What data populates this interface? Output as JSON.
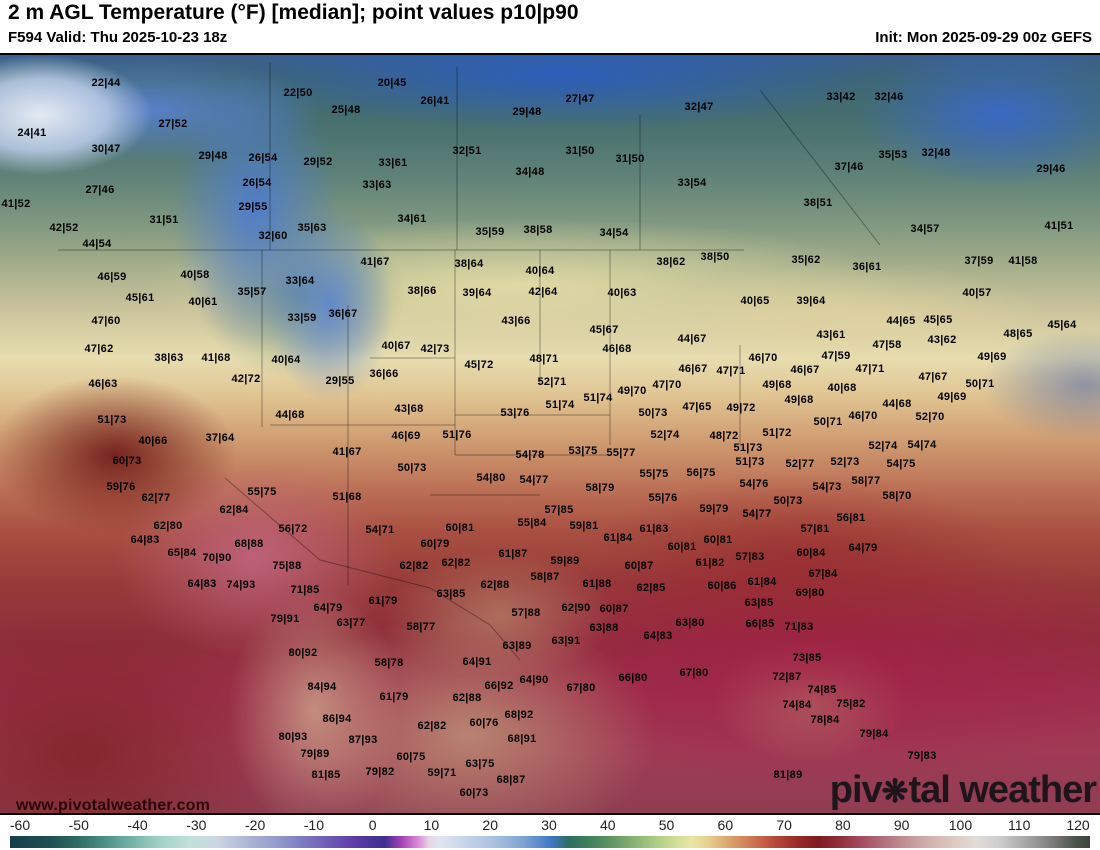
{
  "header": {
    "title": "2 m AGL Temperature (°F) [median]; point values p10|p90",
    "valid": "F594 Valid: Thu 2025-10-23 18z",
    "init": "Init: Mon 2025-09-29 00z GEFS"
  },
  "watermark": {
    "url": "www.pivotalweather.com",
    "logo_pre": "piv",
    "logo_gear": "❋",
    "logo_post": "tal weather"
  },
  "colorbar": {
    "unit": "°F",
    "ticks": [
      -60,
      -50,
      -40,
      -30,
      -20,
      -10,
      0,
      10,
      20,
      30,
      40,
      50,
      60,
      70,
      80,
      90,
      100,
      110,
      120
    ],
    "stops": [
      [
        0.0,
        "#16404a"
      ],
      [
        3.7,
        "#1d5054"
      ],
      [
        6.3,
        "#2d6d64"
      ],
      [
        8.9,
        "#4c9287"
      ],
      [
        11.4,
        "#76b5a9"
      ],
      [
        14.0,
        "#a3d2c6"
      ],
      [
        16.6,
        "#c2e0d8"
      ],
      [
        19.2,
        "#cbd5e3"
      ],
      [
        21.8,
        "#adb9d7"
      ],
      [
        24.4,
        "#969fce"
      ],
      [
        26.9,
        "#7e7ec3"
      ],
      [
        29.5,
        "#6e5bb7"
      ],
      [
        32.1,
        "#5c39a5"
      ],
      [
        34.7,
        "#3c2f8f"
      ],
      [
        36.2,
        "#a53fb5"
      ],
      [
        37.8,
        "#d98bd6"
      ],
      [
        38.8,
        "#e8d5e6"
      ],
      [
        39.8,
        "#dfe6f0"
      ],
      [
        42.4,
        "#c3d3e8"
      ],
      [
        45.0,
        "#a6c0e0"
      ],
      [
        47.6,
        "#7ba3d4"
      ],
      [
        50.2,
        "#3e76c4"
      ],
      [
        51.7,
        "#2c6e62"
      ],
      [
        53.3,
        "#3a7d5e"
      ],
      [
        55.3,
        "#58925f"
      ],
      [
        57.4,
        "#7fae6e"
      ],
      [
        59.5,
        "#a8c87f"
      ],
      [
        61.5,
        "#cfdd94"
      ],
      [
        63.1,
        "#eae6a4"
      ],
      [
        64.6,
        "#e8d08e"
      ],
      [
        66.7,
        "#dca06a"
      ],
      [
        68.8,
        "#cc7450"
      ],
      [
        70.8,
        "#b84a3a"
      ],
      [
        72.9,
        "#992a28"
      ],
      [
        74.9,
        "#7e1a1e"
      ],
      [
        77.0,
        "#93303e"
      ],
      [
        79.1,
        "#a65062"
      ],
      [
        81.1,
        "#b57280"
      ],
      [
        83.2,
        "#c49597"
      ],
      [
        85.3,
        "#d3b3ae"
      ],
      [
        87.3,
        "#ddc8c2"
      ],
      [
        89.4,
        "#e3dcd8"
      ],
      [
        91.5,
        "#cfcfcf"
      ],
      [
        94.0,
        "#a8a8a8"
      ],
      [
        96.6,
        "#7a7a7a"
      ],
      [
        98.7,
        "#4a524a"
      ],
      [
        100,
        "#3c443c"
      ]
    ]
  },
  "map": {
    "points": [
      [
        106,
        83,
        "22|44"
      ],
      [
        298,
        93,
        "22|50"
      ],
      [
        346,
        110,
        "25|48"
      ],
      [
        32,
        133,
        "24|41"
      ],
      [
        173,
        124,
        "27|52"
      ],
      [
        106,
        149,
        "30|47"
      ],
      [
        213,
        156,
        "29|48"
      ],
      [
        263,
        158,
        "26|54"
      ],
      [
        318,
        162,
        "29|52"
      ],
      [
        257,
        183,
        "26|54"
      ],
      [
        100,
        190,
        "27|46"
      ],
      [
        16,
        204,
        "41|52"
      ],
      [
        253,
        207,
        "29|55"
      ],
      [
        164,
        220,
        "31|51"
      ],
      [
        64,
        228,
        "42|52"
      ],
      [
        312,
        228,
        "35|63"
      ],
      [
        273,
        236,
        "32|60"
      ],
      [
        97,
        244,
        "44|54"
      ],
      [
        392,
        83,
        "20|45"
      ],
      [
        435,
        101,
        "26|41"
      ],
      [
        580,
        99,
        "27|47"
      ],
      [
        527,
        112,
        "29|48"
      ],
      [
        699,
        107,
        "32|47"
      ],
      [
        467,
        151,
        "32|51"
      ],
      [
        580,
        151,
        "31|50"
      ],
      [
        630,
        159,
        "31|50"
      ],
      [
        393,
        163,
        "33|61"
      ],
      [
        530,
        172,
        "34|48"
      ],
      [
        692,
        183,
        "33|54"
      ],
      [
        377,
        185,
        "33|63"
      ],
      [
        412,
        219,
        "34|61"
      ],
      [
        490,
        232,
        "35|59"
      ],
      [
        538,
        230,
        "38|58"
      ],
      [
        614,
        233,
        "34|54"
      ],
      [
        841,
        97,
        "33|42"
      ],
      [
        889,
        97,
        "32|46"
      ],
      [
        893,
        155,
        "35|53"
      ],
      [
        936,
        153,
        "32|48"
      ],
      [
        849,
        167,
        "37|46"
      ],
      [
        1051,
        169,
        "29|46"
      ],
      [
        818,
        203,
        "38|51"
      ],
      [
        925,
        229,
        "34|57"
      ],
      [
        1059,
        226,
        "41|51"
      ],
      [
        112,
        277,
        "46|59"
      ],
      [
        195,
        275,
        "40|58"
      ],
      [
        300,
        281,
        "33|64"
      ],
      [
        140,
        298,
        "45|61"
      ],
      [
        203,
        302,
        "40|61"
      ],
      [
        252,
        292,
        "35|57"
      ],
      [
        302,
        318,
        "33|59"
      ],
      [
        343,
        314,
        "36|67"
      ],
      [
        106,
        321,
        "47|60"
      ],
      [
        99,
        349,
        "47|62"
      ],
      [
        169,
        358,
        "38|63"
      ],
      [
        216,
        358,
        "41|68"
      ],
      [
        286,
        360,
        "40|64"
      ],
      [
        246,
        379,
        "42|72"
      ],
      [
        340,
        381,
        "29|55"
      ],
      [
        103,
        384,
        "46|63"
      ],
      [
        112,
        420,
        "51|73"
      ],
      [
        290,
        415,
        "44|68"
      ],
      [
        153,
        441,
        "40|66"
      ],
      [
        220,
        438,
        "37|64"
      ],
      [
        347,
        452,
        "41|67"
      ],
      [
        375,
        262,
        "41|67"
      ],
      [
        469,
        264,
        "38|64"
      ],
      [
        540,
        271,
        "40|64"
      ],
      [
        671,
        262,
        "38|62"
      ],
      [
        715,
        257,
        "38|50"
      ],
      [
        422,
        291,
        "38|66"
      ],
      [
        477,
        293,
        "39|64"
      ],
      [
        543,
        292,
        "42|64"
      ],
      [
        622,
        293,
        "40|63"
      ],
      [
        516,
        321,
        "43|66"
      ],
      [
        604,
        330,
        "45|67"
      ],
      [
        692,
        339,
        "44|67"
      ],
      [
        396,
        346,
        "40|67"
      ],
      [
        435,
        349,
        "42|73"
      ],
      [
        617,
        349,
        "46|68"
      ],
      [
        479,
        365,
        "45|72"
      ],
      [
        384,
        374,
        "36|66"
      ],
      [
        544,
        359,
        "48|71"
      ],
      [
        693,
        369,
        "46|67"
      ],
      [
        552,
        382,
        "52|71"
      ],
      [
        667,
        385,
        "47|70"
      ],
      [
        632,
        391,
        "49|70"
      ],
      [
        697,
        394,
        "47|65"
      ],
      [
        598,
        398,
        "51|74"
      ],
      [
        409,
        409,
        "43|68"
      ],
      [
        560,
        405,
        "51|74"
      ],
      [
        515,
        413,
        "53|76"
      ],
      [
        653,
        413,
        "50|73"
      ],
      [
        406,
        436,
        "46|69"
      ],
      [
        457,
        435,
        "51|76"
      ],
      [
        665,
        435,
        "52|74"
      ],
      [
        806,
        260,
        "35|62"
      ],
      [
        867,
        267,
        "36|61"
      ],
      [
        979,
        261,
        "37|59"
      ],
      [
        1023,
        261,
        "41|58"
      ],
      [
        977,
        293,
        "40|57"
      ],
      [
        755,
        301,
        "40|65"
      ],
      [
        811,
        301,
        "39|64"
      ],
      [
        901,
        321,
        "44|65"
      ],
      [
        938,
        320,
        "45|65"
      ],
      [
        1062,
        325,
        "45|64"
      ],
      [
        831,
        335,
        "43|61"
      ],
      [
        942,
        340,
        "43|62"
      ],
      [
        1018,
        334,
        "48|65"
      ],
      [
        887,
        345,
        "47|58"
      ],
      [
        836,
        356,
        "47|59"
      ],
      [
        992,
        357,
        "49|69"
      ],
      [
        763,
        358,
        "46|70"
      ],
      [
        805,
        370,
        "46|67"
      ],
      [
        870,
        369,
        "47|71"
      ],
      [
        731,
        371,
        "47|71"
      ],
      [
        777,
        385,
        "49|68"
      ],
      [
        842,
        388,
        "40|68"
      ],
      [
        933,
        377,
        "47|67"
      ],
      [
        980,
        384,
        "50|71"
      ],
      [
        799,
        400,
        "49|68"
      ],
      [
        952,
        397,
        "49|69"
      ],
      [
        741,
        408,
        "49|72"
      ],
      [
        897,
        404,
        "44|68"
      ],
      [
        863,
        416,
        "46|70"
      ],
      [
        930,
        417,
        "52|70"
      ],
      [
        828,
        422,
        "50|71"
      ],
      [
        777,
        433,
        "51|72"
      ],
      [
        724,
        436,
        "48|72"
      ],
      [
        748,
        448,
        "51|73"
      ],
      [
        883,
        446,
        "52|74"
      ],
      [
        922,
        445,
        "54|74"
      ],
      [
        127,
        461,
        "60|73"
      ],
      [
        121,
        487,
        "59|76"
      ],
      [
        156,
        498,
        "62|77"
      ],
      [
        262,
        492,
        "55|75"
      ],
      [
        347,
        497,
        "51|68"
      ],
      [
        234,
        510,
        "62|84"
      ],
      [
        168,
        526,
        "62|80"
      ],
      [
        293,
        529,
        "56|72"
      ],
      [
        145,
        540,
        "64|83"
      ],
      [
        249,
        544,
        "68|88"
      ],
      [
        182,
        553,
        "65|84"
      ],
      [
        217,
        558,
        "70|90"
      ],
      [
        287,
        566,
        "75|88"
      ],
      [
        202,
        584,
        "64|83"
      ],
      [
        241,
        585,
        "74|93"
      ],
      [
        305,
        590,
        "71|85"
      ],
      [
        328,
        608,
        "64|79"
      ],
      [
        285,
        619,
        "79|91"
      ],
      [
        351,
        623,
        "63|77"
      ],
      [
        412,
        468,
        "50|73"
      ],
      [
        530,
        455,
        "54|78"
      ],
      [
        583,
        451,
        "53|75"
      ],
      [
        621,
        453,
        "55|77"
      ],
      [
        654,
        461,
        "55|75"
      ],
      [
        491,
        478,
        "54|80"
      ],
      [
        534,
        480,
        "54|77"
      ],
      [
        701,
        473,
        "56|75"
      ],
      [
        600,
        488,
        "58|79"
      ],
      [
        663,
        485,
        "55|76"
      ],
      [
        559,
        510,
        "57|85"
      ],
      [
        714,
        509,
        "59|79"
      ],
      [
        532,
        523,
        "55|84"
      ],
      [
        584,
        526,
        "59|81"
      ],
      [
        380,
        530,
        "54|71"
      ],
      [
        460,
        528,
        "60|81"
      ],
      [
        654,
        529,
        "61|83"
      ],
      [
        618,
        538,
        "61|84"
      ],
      [
        435,
        544,
        "60|79"
      ],
      [
        682,
        547,
        "60|81"
      ],
      [
        718,
        540,
        "60|81"
      ],
      [
        513,
        554,
        "61|87"
      ],
      [
        565,
        561,
        "59|89"
      ],
      [
        414,
        566,
        "62|82"
      ],
      [
        456,
        563,
        "62|82"
      ],
      [
        710,
        563,
        "61|82"
      ],
      [
        639,
        566,
        "60|87"
      ],
      [
        545,
        577,
        "58|87"
      ],
      [
        495,
        585,
        "62|88"
      ],
      [
        597,
        584,
        "61|88"
      ],
      [
        651,
        588,
        "62|85"
      ],
      [
        722,
        586,
        "60|86"
      ],
      [
        451,
        594,
        "63|85"
      ],
      [
        383,
        601,
        "61|79"
      ],
      [
        526,
        613,
        "57|88"
      ],
      [
        576,
        608,
        "62|90"
      ],
      [
        614,
        609,
        "60|87"
      ],
      [
        690,
        623,
        "63|80"
      ],
      [
        421,
        627,
        "58|77"
      ],
      [
        604,
        628,
        "63|88"
      ],
      [
        750,
        449,
        "51|73"
      ],
      [
        754,
        471,
        "54|76"
      ],
      [
        800,
        464,
        "52|77"
      ],
      [
        845,
        462,
        "52|73"
      ],
      [
        901,
        464,
        "54|75"
      ],
      [
        866,
        481,
        "58|77"
      ],
      [
        827,
        487,
        "54|73"
      ],
      [
        897,
        496,
        "58|70"
      ],
      [
        788,
        501,
        "50|73"
      ],
      [
        757,
        514,
        "54|77"
      ],
      [
        851,
        518,
        "56|81"
      ],
      [
        815,
        529,
        "57|81"
      ],
      [
        863,
        548,
        "64|79"
      ],
      [
        750,
        557,
        "57|83"
      ],
      [
        811,
        553,
        "60|84"
      ],
      [
        823,
        574,
        "67|84"
      ],
      [
        762,
        582,
        "61|84"
      ],
      [
        810,
        593,
        "69|80"
      ],
      [
        759,
        603,
        "63|85"
      ],
      [
        760,
        624,
        "66|85"
      ],
      [
        799,
        627,
        "71|83"
      ],
      [
        303,
        653,
        "80|92"
      ],
      [
        322,
        687,
        "84|94"
      ],
      [
        337,
        719,
        "86|94"
      ],
      [
        293,
        737,
        "80|93"
      ],
      [
        363,
        740,
        "87|93"
      ],
      [
        315,
        754,
        "79|89"
      ],
      [
        326,
        775,
        "81|85"
      ],
      [
        389,
        663,
        "58|78"
      ],
      [
        517,
        646,
        "63|89"
      ],
      [
        566,
        641,
        "63|91"
      ],
      [
        658,
        636,
        "64|83"
      ],
      [
        477,
        662,
        "64|91"
      ],
      [
        499,
        686,
        "66|92"
      ],
      [
        534,
        680,
        "64|90"
      ],
      [
        394,
        697,
        "61|79"
      ],
      [
        467,
        698,
        "62|88"
      ],
      [
        581,
        688,
        "67|80"
      ],
      [
        633,
        678,
        "66|80"
      ],
      [
        694,
        673,
        "67|80"
      ],
      [
        432,
        726,
        "62|82"
      ],
      [
        484,
        723,
        "60|76"
      ],
      [
        519,
        715,
        "68|92"
      ],
      [
        522,
        739,
        "68|91"
      ],
      [
        411,
        757,
        "60|75"
      ],
      [
        380,
        772,
        "79|82"
      ],
      [
        442,
        773,
        "59|71"
      ],
      [
        480,
        764,
        "63|75"
      ],
      [
        511,
        780,
        "68|87"
      ],
      [
        474,
        793,
        "60|73"
      ],
      [
        807,
        658,
        "73|85"
      ],
      [
        787,
        677,
        "72|87"
      ],
      [
        822,
        690,
        "74|85"
      ],
      [
        797,
        705,
        "74|84"
      ],
      [
        851,
        704,
        "75|82"
      ],
      [
        825,
        720,
        "78|84"
      ],
      [
        874,
        734,
        "79|84"
      ],
      [
        922,
        756,
        "79|83"
      ],
      [
        788,
        775,
        "81|89"
      ]
    ]
  }
}
